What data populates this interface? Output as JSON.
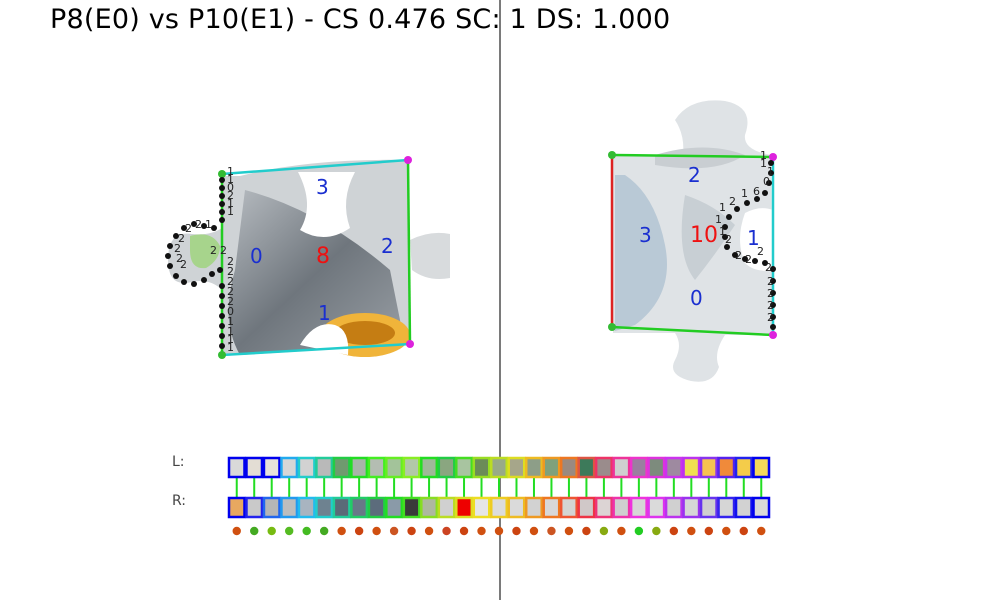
{
  "title": "P8(E0) vs P10(E1) - CS 0.476 SC: 1 DS: 1.000",
  "left_piece": {
    "edge_labels": [
      "0",
      "1",
      "2",
      "3"
    ],
    "edge_colors": {
      "0": "#22cc22",
      "1": "#22cccc",
      "2": "#22cc22",
      "3": "#22cccc"
    },
    "center_label": "8",
    "point_labels": [
      "1",
      "1",
      "0",
      "2",
      "1",
      "1",
      "2",
      "1",
      "2",
      "2",
      "2",
      "2",
      "2",
      "2",
      "2",
      "2",
      "2",
      "2",
      "2",
      "2",
      "0",
      "1",
      "1",
      "1",
      "1"
    ]
  },
  "right_piece": {
    "edge_labels": [
      "0",
      "1",
      "2",
      "3"
    ],
    "edge_colors": {
      "0": "#22cc22",
      "1": "#22cccc",
      "2": "#22cc22",
      "3": "#dd2222"
    },
    "center_label": "10",
    "point_labels": [
      "1",
      "1",
      "1",
      "0",
      "6",
      "1",
      "2",
      "1",
      "1",
      "1",
      "2",
      "2",
      "2",
      "2",
      "2",
      "2",
      "2",
      "2",
      "2"
    ]
  },
  "strip": {
    "left_label": "L:",
    "right_label": "R:",
    "left_cells": [
      {
        "fill": "#d9d9d9",
        "border": "#0000ee"
      },
      {
        "fill": "#e3ddd4",
        "border": "#0000ee"
      },
      {
        "fill": "#e8e2da",
        "border": "#0000ee"
      },
      {
        "fill": "#d6d6d6",
        "border": "#22aaee"
      },
      {
        "fill": "#d2d2d2",
        "border": "#22cccc"
      },
      {
        "fill": "#b9b9b9",
        "border": "#22cc99"
      },
      {
        "fill": "#6f9a6f",
        "border": "#22cc44"
      },
      {
        "fill": "#a9b4a9",
        "border": "#22dd22"
      },
      {
        "fill": "#b4bdb2",
        "border": "#44ee22"
      },
      {
        "fill": "#a3c39a",
        "border": "#66ee22"
      },
      {
        "fill": "#b2c8a8",
        "border": "#88ee22"
      },
      {
        "fill": "#a0b89a",
        "border": "#22dd22"
      },
      {
        "fill": "#8aa680",
        "border": "#22cc44"
      },
      {
        "fill": "#a8c4a0",
        "border": "#44dd22"
      },
      {
        "fill": "#6b8c58",
        "border": "#99dd22"
      },
      {
        "fill": "#98aa88",
        "border": "#bbdd22"
      },
      {
        "fill": "#a6a68a",
        "border": "#dddd22"
      },
      {
        "fill": "#8d9e88",
        "border": "#eebb22"
      },
      {
        "fill": "#7fa17c",
        "border": "#ee9922"
      },
      {
        "fill": "#9a8a80",
        "border": "#ee7722"
      },
      {
        "fill": "#3d7a5a",
        "border": "#dd5544"
      },
      {
        "fill": "#9a8c8c",
        "border": "#ee3366"
      },
      {
        "fill": "#cfcfcf",
        "border": "#ee3399"
      },
      {
        "fill": "#9a7fa0",
        "border": "#ee33cc"
      },
      {
        "fill": "#7d8b7d",
        "border": "#dd33dd"
      },
      {
        "fill": "#9e8aa0",
        "border": "#cc33ee"
      },
      {
        "fill": "#f0e050",
        "border": "#bb33ee"
      },
      {
        "fill": "#f6c250",
        "border": "#8833ee"
      },
      {
        "fill": "#f08a3a",
        "border": "#5522ee"
      },
      {
        "fill": "#f4cc4a",
        "border": "#2222ee"
      },
      {
        "fill": "#f4d85a",
        "border": "#0000ee"
      }
    ],
    "right_cells": [
      {
        "fill": "#e8a860",
        "border": "#0000ee"
      },
      {
        "fill": "#c9c9c9",
        "border": "#2222ee"
      },
      {
        "fill": "#b6b6b6",
        "border": "#2266ee"
      },
      {
        "fill": "#bdbdbd",
        "border": "#2299ee"
      },
      {
        "fill": "#a8b4c0",
        "border": "#22bbee"
      },
      {
        "fill": "#6e8290",
        "border": "#22cccc"
      },
      {
        "fill": "#5a6a78",
        "border": "#22cc99"
      },
      {
        "fill": "#687888",
        "border": "#22cc66"
      },
      {
        "fill": "#5c6c7c",
        "border": "#22cc44"
      },
      {
        "fill": "#8a9aa8",
        "border": "#22dd22"
      },
      {
        "fill": "#3a3a3a",
        "border": "#44dd22"
      },
      {
        "fill": "#aeb8a0",
        "border": "#88dd22"
      },
      {
        "fill": "#d0d0d0",
        "border": "#bbdd22"
      },
      {
        "fill": "#ee0000",
        "border": "#dddd22"
      },
      {
        "fill": "#e6e6e6",
        "border": "#eedd22"
      },
      {
        "fill": "#dcdcdc",
        "border": "#eecc22"
      },
      {
        "fill": "#dadada",
        "border": "#eebb22"
      },
      {
        "fill": "#d2d2d2",
        "border": "#ee9922"
      },
      {
        "fill": "#d8d8d8",
        "border": "#ee7722"
      },
      {
        "fill": "#d4d4d4",
        "border": "#ee5533"
      },
      {
        "fill": "#d0c8c8",
        "border": "#ee3344"
      },
      {
        "fill": "#dcd4d4",
        "border": "#ee3377"
      },
      {
        "fill": "#cfcfcf",
        "border": "#ee33aa"
      },
      {
        "fill": "#d6d6d6",
        "border": "#ee33dd"
      },
      {
        "fill": "#dadada",
        "border": "#dd33ee"
      },
      {
        "fill": "#d0d0d0",
        "border": "#bb33ee"
      },
      {
        "fill": "#d6d6d6",
        "border": "#9933ee"
      },
      {
        "fill": "#cfcfcf",
        "border": "#6633ee"
      },
      {
        "fill": "#d6d6d6",
        "border": "#3322ee"
      },
      {
        "fill": "#d2d2d2",
        "border": "#1111ee"
      },
      {
        "fill": "#d8d8d8",
        "border": "#0000ee"
      }
    ],
    "link_color": "#22dd22",
    "score_dots": [
      "#d05010",
      "#44aa22",
      "#77bb11",
      "#55bb22",
      "#44bb22",
      "#44aa22",
      "#d05010",
      "#cc4411",
      "#d05010",
      "#cc5522",
      "#cc4411",
      "#d05010",
      "#cc4422",
      "#cc4411",
      "#d05010",
      "#d05010",
      "#cc4411",
      "#d05010",
      "#cc5522",
      "#d05010",
      "#cc4411",
      "#88aa11",
      "#d05010",
      "#22cc22",
      "#88aa11",
      "#cc4411",
      "#d05010",
      "#cc4411",
      "#d05010",
      "#cc4411",
      "#d05010"
    ]
  }
}
